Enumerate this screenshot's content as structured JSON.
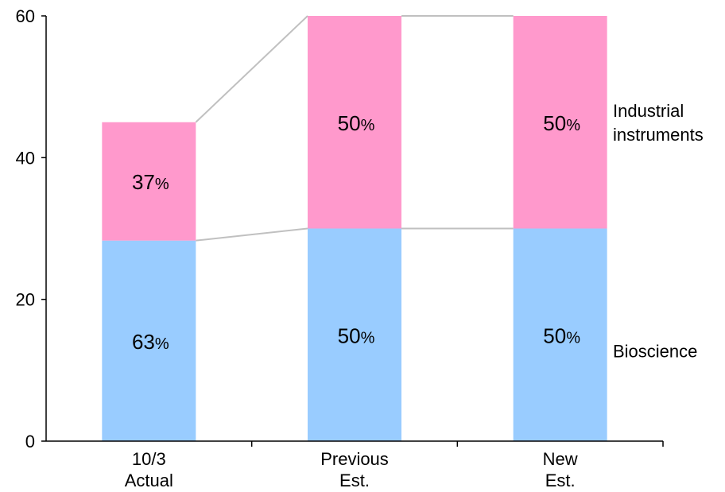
{
  "chart_data": {
    "type": "bar",
    "stacked": true,
    "categories": [
      [
        "10/3",
        "Actual"
      ],
      [
        "Previous",
        "Est."
      ],
      [
        "New",
        "Est."
      ]
    ],
    "series": [
      {
        "name": "Bioscience",
        "values": [
          28.3,
          30,
          30
        ],
        "labels": [
          "63",
          "50",
          "50"
        ],
        "color": "#99ccff"
      },
      {
        "name": "Industrial instruments",
        "values": [
          16.7,
          30,
          30
        ],
        "labels": [
          "37",
          "50",
          "50"
        ],
        "color": "#ff99cc"
      }
    ],
    "legend_lines": {
      "Bioscience": [
        "Bioscience"
      ],
      "Industrial instruments": [
        "Industrial",
        "instruments"
      ]
    },
    "percent_sign": "%",
    "ylim": [
      0,
      60
    ],
    "yticks": [
      0,
      20,
      40,
      60
    ],
    "connector_color": "#c0c0c0",
    "axis_color": "#000000",
    "legend_placement": "right",
    "grid": false
  }
}
